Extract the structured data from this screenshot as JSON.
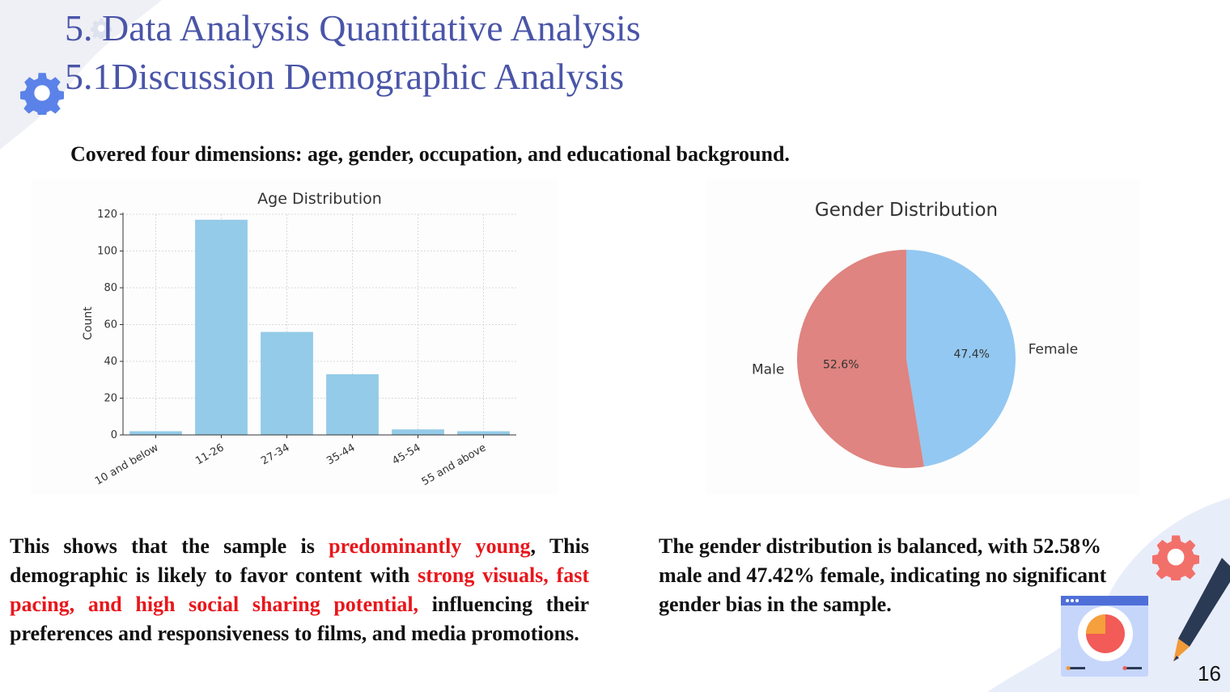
{
  "slide": {
    "title_line1": "5. Data Analysis Quantitative Analysis",
    "title_line2": "5.1Discussion Demographic Analysis",
    "subtitle": "Covered four dimensions: age, gender, occupation, and educational background.",
    "page_number": "16",
    "accent_color": "#4a55a8",
    "highlight_color": "#e8161b"
  },
  "left_text": {
    "seg1": "This shows that the sample is ",
    "seg2_red": "predominantly young",
    "seg3": ", This demographic is likely to favor content with ",
    "seg4_red": "strong visuals, fast pacing, and high social sharing potential,",
    "seg5": " influencing their preferences and responsiveness to films, and media promotions."
  },
  "right_text": {
    "text": "The gender distribution is balanced, with 52.58% male and 47.42% female, indicating no significant gender bias in the sample."
  },
  "chart_data": [
    {
      "type": "bar",
      "title": "Age Distribution",
      "xlabel": "",
      "ylabel": "Count",
      "categories": [
        "10 and below",
        "11-26",
        "27-34",
        "35-44",
        "45-54",
        "55 and above"
      ],
      "values": [
        2,
        117,
        56,
        33,
        3,
        2
      ],
      "ylim": [
        0,
        120
      ],
      "yticks": [
        0,
        20,
        40,
        60,
        80,
        100,
        120
      ],
      "grid": true,
      "bar_color": "#94cbe8"
    },
    {
      "type": "pie",
      "title": "Gender Distribution",
      "labels": [
        "Female",
        "Male"
      ],
      "values": [
        47.4,
        52.6
      ],
      "pct_labels": [
        "47.4%",
        "52.6%"
      ],
      "colors": [
        "#93c8f2",
        "#df8480"
      ]
    }
  ]
}
